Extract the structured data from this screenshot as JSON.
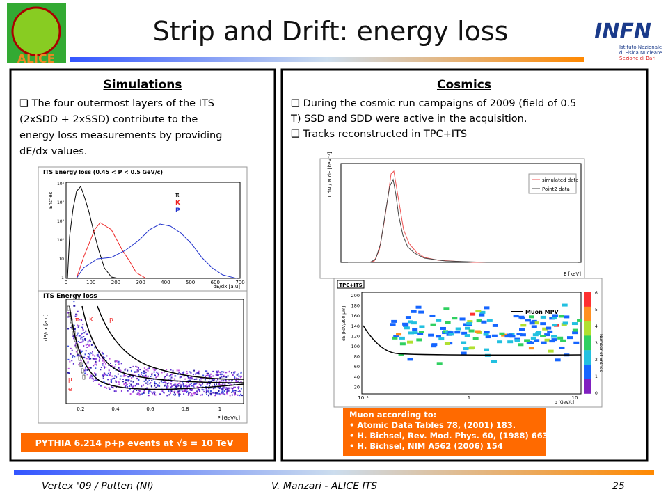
{
  "header": {
    "title": "Strip and Drift: energy loss",
    "logo_left": "ALICE",
    "logo_right": "INFN",
    "logo_right_sub": [
      "Istituto Nazionale",
      "di Fisica Nucleare",
      "Sezione di Bari"
    ]
  },
  "panels": [
    {
      "heading": "Simulations",
      "bullets": [
        [
          "The four outermost layers of the ITS",
          "(2xSDD + 2xSSD) contribute to the",
          "energy loss measurements by providing",
          "dE/dx values."
        ]
      ],
      "plot1": {
        "title": "ITS Energy loss (0.45 < P < 0.5 GeV/c)",
        "y_label": "Entries",
        "x_label": "dE/dx [a.u]",
        "legend": [
          "π",
          "K",
          "P"
        ],
        "xticks": [
          "0",
          "100",
          "200",
          "300",
          "400",
          "500",
          "600",
          "700"
        ],
        "yticks": [
          "10⁵",
          "10⁴",
          "10³",
          "10²",
          "10",
          "1"
        ]
      },
      "plot2": {
        "title": "ITS Energy loss",
        "y_label": "dE/dx [a.u]",
        "x_label": "P [GeV/c]",
        "labels": [
          "π",
          "K",
          "p",
          "μ",
          "e"
        ],
        "xticks": [
          "0.2",
          "0.4",
          "0.6",
          "0.8",
          "1"
        ]
      },
      "caption": "PYTHIA 6.214 p+p events at √s = 10 TeV"
    },
    {
      "heading": "Cosmics",
      "bullets": [
        [
          "During the cosmic run campaigns of 2009 (field of 0.5",
          "T) SSD  and SDD were active in the acquisition."
        ],
        [
          "Tracks reconstructed in TPC+ITS"
        ]
      ],
      "plot1": {
        "y_label": "1 dN / N dE [keV⁻¹]",
        "x_label": "E [keV]",
        "legend": [
          "simulated data",
          "Point2 data"
        ]
      },
      "plot2": {
        "title": "TPC+ITS",
        "legend": "Muon MPV",
        "y_label": "dE [keV/300 μm]",
        "x_label": "p [GeV/c]",
        "yticks": [
          "200",
          "180",
          "160",
          "140",
          "120",
          "100",
          "80",
          "60",
          "40",
          "20"
        ],
        "xticks": [
          "10⁻¹",
          "1",
          "10"
        ],
        "z_label": "Number of Entries",
        "zticks": [
          "6",
          "5",
          "4",
          "3",
          "2",
          "1",
          "0"
        ]
      },
      "note": [
        "Muon according to:",
        "• Atomic Data Tables 78, (2001) 183.",
        "• H. Bichsel, Rev. Mod. Phys. 60, (1988) 663",
        "• H. Bichsel, NIM A562 (2006) 154"
      ]
    }
  ],
  "footer": {
    "left": "Vertex '09 / Putten (Nl)",
    "center": "V. Manzari - ALICE ITS",
    "right": "25"
  }
}
